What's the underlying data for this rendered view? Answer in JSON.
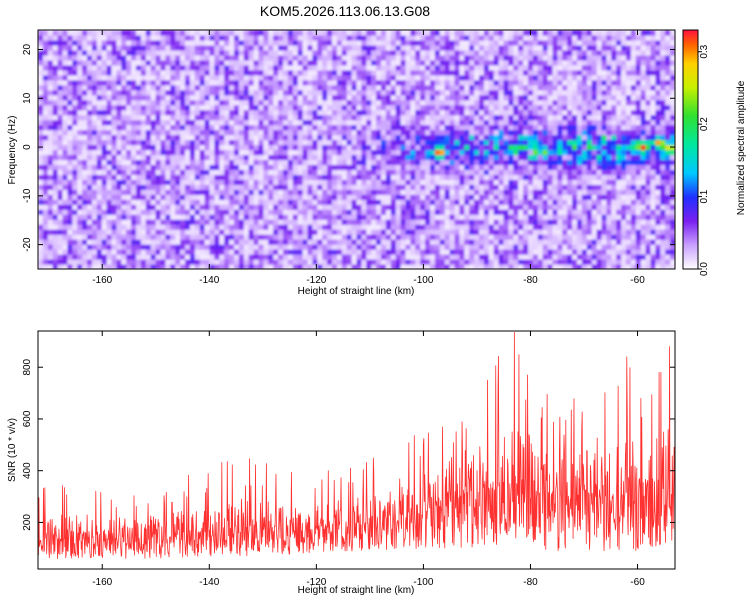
{
  "figure_title": "KOM5.2026.113.06.13.G08",
  "chart_data": [
    {
      "type": "heatmap",
      "xlabel": "Height of straight line (km)",
      "ylabel": "Frequency (Hz)",
      "xlim": [
        -172,
        -53
      ],
      "ylim": [
        -25,
        24
      ],
      "xticks": [
        -160,
        -140,
        -120,
        -100,
        -80,
        -60
      ],
      "yticks": [
        -20,
        -10,
        0,
        10,
        20
      ],
      "colorbar": {
        "label": "Normalized spectral amplitude",
        "range": [
          0,
          0.33
        ],
        "ticks": [
          0.0,
          0.1,
          0.2,
          0.3
        ],
        "tick_labels": [
          "0.0",
          "0.1",
          "0.2",
          "0.3"
        ]
      },
      "features": {
        "background_level": 0.05,
        "band_center_frequency": 0,
        "band_start_km": -115,
        "peak_amplitude": 0.33,
        "peaks": [
          {
            "x": -97,
            "y": -1,
            "value": 0.33
          },
          {
            "x": -59,
            "y": 0,
            "value": 0.32
          },
          {
            "x": -56,
            "y": 1,
            "value": 0.3
          },
          {
            "x": -54,
            "y": 0,
            "value": 0.28
          }
        ]
      }
    },
    {
      "type": "line",
      "xlabel": "Height of straight line (km)",
      "ylabel": "SNR (10 * v/v)",
      "xlim": [
        -172,
        -53
      ],
      "ylim": [
        20,
        940
      ],
      "xticks": [
        -160,
        -140,
        -120,
        -100,
        -80,
        -60
      ],
      "yticks": [
        200,
        400,
        600,
        800
      ],
      "grid": false,
      "series_color": "#ff3030",
      "envelope": [
        {
          "x": -172,
          "low": 60,
          "mid": 130,
          "high": 360
        },
        {
          "x": -150,
          "low": 60,
          "mid": 140,
          "high": 330
        },
        {
          "x": -135,
          "low": 70,
          "mid": 160,
          "high": 460
        },
        {
          "x": -120,
          "low": 80,
          "mid": 170,
          "high": 390
        },
        {
          "x": -105,
          "low": 90,
          "mid": 200,
          "high": 480
        },
        {
          "x": -97,
          "low": 100,
          "mid": 270,
          "high": 620
        },
        {
          "x": -88,
          "low": 100,
          "mid": 320,
          "high": 780
        },
        {
          "x": -83,
          "low": 100,
          "mid": 340,
          "high": 935
        },
        {
          "x": -75,
          "low": 90,
          "mid": 300,
          "high": 720
        },
        {
          "x": -65,
          "low": 90,
          "mid": 300,
          "high": 700
        },
        {
          "x": -60,
          "low": 90,
          "mid": 300,
          "high": 840
        },
        {
          "x": -53,
          "low": 100,
          "mid": 320,
          "high": 880
        }
      ],
      "peaks": [
        {
          "x": -83,
          "y": 935
        },
        {
          "x": -80.5,
          "y": 770
        },
        {
          "x": -88,
          "y": 750
        },
        {
          "x": -62,
          "y": 840
        },
        {
          "x": -54,
          "y": 880
        },
        {
          "x": -56,
          "y": 780
        }
      ]
    }
  ]
}
